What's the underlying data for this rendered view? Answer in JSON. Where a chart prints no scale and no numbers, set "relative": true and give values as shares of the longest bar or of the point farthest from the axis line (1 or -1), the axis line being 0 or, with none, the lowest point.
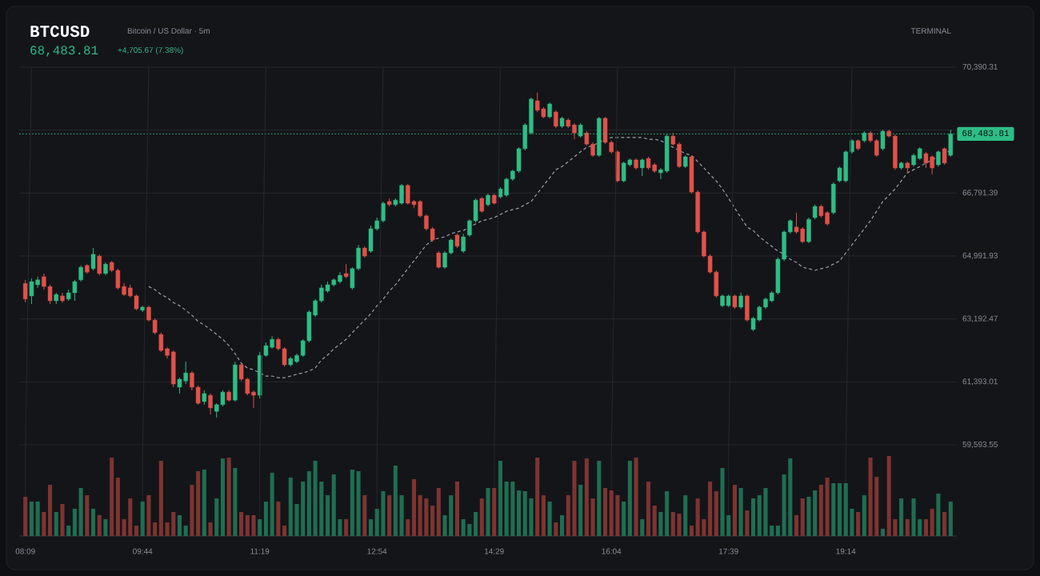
{
  "chart_data": [
    {
      "type": "candlestick",
      "title": "BTCUSD",
      "subtitle": "Bitcoin / US Dollar · 5m",
      "annotations": [
        "68,483.81",
        "+4,705.67 (7.38%)",
        "TERMINAL"
      ],
      "categories": [
        null,
        null,
        null,
        null,
        null,
        null,
        null,
        null,
        null,
        null,
        null,
        null,
        null,
        null,
        null,
        null,
        null,
        null,
        null,
        null,
        null,
        null,
        null,
        null,
        null,
        null,
        null,
        null,
        null,
        null,
        null,
        null,
        null,
        null,
        null,
        null,
        null,
        null,
        null,
        null,
        null,
        null,
        null,
        null,
        null,
        null,
        null,
        null,
        null,
        null,
        null,
        null,
        null,
        null,
        null,
        null,
        null,
        null,
        null,
        null,
        null,
        null,
        null,
        null,
        null,
        null,
        null,
        null,
        null,
        null,
        null,
        null,
        null,
        null,
        null,
        null,
        null,
        null,
        null,
        null,
        null,
        null,
        null,
        null,
        null,
        null,
        null,
        null,
        null,
        null,
        null,
        null,
        null,
        null,
        null,
        null,
        null,
        null,
        null,
        null,
        null,
        null,
        null,
        null,
        null,
        null,
        null,
        null,
        null,
        null,
        null,
        null,
        null,
        null,
        null,
        null,
        null,
        null,
        null,
        null,
        null,
        null,
        null,
        null,
        null,
        null,
        null,
        null,
        null,
        null,
        null,
        null,
        null,
        null,
        null,
        null,
        null,
        null,
        null,
        null,
        null,
        null,
        null,
        null,
        null,
        null,
        null,
        null,
        null,
        null,
        null
      ],
      "ohlc": [
        [
          64210,
          64310,
          63670,
          63760
        ],
        [
          63850,
          64350,
          63620,
          64260
        ],
        [
          64170,
          64400,
          64080,
          64310
        ],
        [
          64400,
          64490,
          64030,
          64120
        ],
        [
          64120,
          64170,
          63620,
          63710
        ],
        [
          63710,
          63940,
          63620,
          63890
        ],
        [
          63850,
          63940,
          63660,
          63710
        ],
        [
          63760,
          64030,
          63710,
          63940
        ],
        [
          63940,
          64310,
          63710,
          64260
        ],
        [
          64310,
          64720,
          64260,
          64670
        ],
        [
          64720,
          64760,
          64490,
          64530
        ],
        [
          64630,
          65220,
          64580,
          65040
        ],
        [
          64990,
          65040,
          64440,
          64490
        ],
        [
          64490,
          64810,
          64440,
          64760
        ],
        [
          64810,
          64850,
          64530,
          64580
        ],
        [
          64580,
          64630,
          64030,
          64080
        ],
        [
          64120,
          64220,
          63850,
          63890
        ],
        [
          64080,
          64170,
          63800,
          63850
        ],
        [
          63850,
          63890,
          63440,
          63480
        ],
        [
          63440,
          63570,
          63390,
          63530
        ],
        [
          63530,
          63570,
          63120,
          63160
        ],
        [
          63160,
          63210,
          62750,
          62800
        ],
        [
          62750,
          62800,
          62250,
          62290
        ],
        [
          62340,
          62380,
          62060,
          62150
        ],
        [
          62250,
          62290,
          61240,
          61330
        ],
        [
          61240,
          61510,
          61060,
          61470
        ],
        [
          61420,
          61970,
          61330,
          61650
        ],
        [
          61650,
          61700,
          61150,
          61240
        ],
        [
          61240,
          61290,
          60740,
          60780
        ],
        [
          60830,
          61150,
          60740,
          61060
        ],
        [
          61010,
          61060,
          60460,
          60650
        ],
        [
          60550,
          60780,
          60370,
          60740
        ],
        [
          60740,
          61150,
          60690,
          61100
        ],
        [
          61100,
          61150,
          60830,
          60870
        ],
        [
          60870,
          61970,
          60830,
          61880
        ],
        [
          61880,
          61930,
          61420,
          61470
        ],
        [
          61470,
          61510,
          61010,
          61060
        ],
        [
          61100,
          61150,
          60650,
          61010
        ],
        [
          61010,
          62250,
          60920,
          62150
        ],
        [
          62150,
          62520,
          62110,
          62430
        ],
        [
          62380,
          62700,
          62340,
          62610
        ],
        [
          62610,
          62660,
          62290,
          62340
        ],
        [
          62340,
          62380,
          61830,
          61880
        ],
        [
          61880,
          62110,
          61830,
          62060
        ],
        [
          61970,
          62200,
          61930,
          62150
        ],
        [
          62150,
          62610,
          62110,
          62570
        ],
        [
          62570,
          63440,
          62520,
          63390
        ],
        [
          63300,
          63760,
          63250,
          63710
        ],
        [
          63710,
          64170,
          63660,
          64080
        ],
        [
          63990,
          64260,
          63940,
          64170
        ],
        [
          64170,
          64350,
          64120,
          64310
        ],
        [
          64260,
          64530,
          64210,
          64440
        ],
        [
          64490,
          64760,
          64350,
          64400
        ],
        [
          64080,
          64670,
          64030,
          64630
        ],
        [
          64630,
          65310,
          64580,
          65220
        ],
        [
          65220,
          65270,
          64950,
          64990
        ],
        [
          65130,
          65860,
          65080,
          65770
        ],
        [
          65770,
          66090,
          65720,
          66000
        ],
        [
          66000,
          66550,
          65950,
          66500
        ],
        [
          66550,
          66640,
          66410,
          66460
        ],
        [
          66460,
          66640,
          66410,
          66590
        ],
        [
          66500,
          67050,
          66460,
          67010
        ],
        [
          67010,
          67050,
          66460,
          66500
        ],
        [
          66550,
          66590,
          66360,
          66460
        ],
        [
          66550,
          66590,
          66090,
          66140
        ],
        [
          66140,
          66180,
          65720,
          65770
        ],
        [
          65770,
          65820,
          65400,
          65450
        ],
        [
          65080,
          65130,
          64630,
          64670
        ],
        [
          64670,
          65130,
          64630,
          65080
        ],
        [
          65080,
          65490,
          65040,
          65450
        ],
        [
          65590,
          65630,
          65220,
          65270
        ],
        [
          65130,
          65630,
          65080,
          65540
        ],
        [
          65590,
          66040,
          65540,
          66000
        ],
        [
          66000,
          66640,
          65950,
          66590
        ],
        [
          66640,
          66680,
          66230,
          66270
        ],
        [
          66460,
          66780,
          66410,
          66730
        ],
        [
          66730,
          66780,
          66460,
          66500
        ],
        [
          66680,
          66960,
          66640,
          66910
        ],
        [
          66730,
          67230,
          66680,
          67190
        ],
        [
          67190,
          67460,
          67140,
          67420
        ],
        [
          67420,
          68100,
          67370,
          68060
        ],
        [
          68060,
          68790,
          68010,
          68740
        ],
        [
          68510,
          69520,
          68470,
          69480
        ],
        [
          69430,
          69660,
          69110,
          69160
        ],
        [
          69200,
          69250,
          68930,
          68970
        ],
        [
          68970,
          69380,
          68930,
          69340
        ],
        [
          69110,
          69160,
          68650,
          68700
        ],
        [
          68700,
          68970,
          68650,
          68930
        ],
        [
          68880,
          68930,
          68650,
          68700
        ],
        [
          68740,
          68790,
          68330,
          68510
        ],
        [
          68420,
          68790,
          68380,
          68740
        ],
        [
          68510,
          68560,
          68150,
          68190
        ],
        [
          68190,
          68240,
          67830,
          67870
        ],
        [
          67870,
          68970,
          67830,
          68930
        ],
        [
          68930,
          68970,
          68200,
          68240
        ],
        [
          68240,
          68290,
          67920,
          67970
        ],
        [
          67970,
          68010,
          67100,
          67140
        ],
        [
          67140,
          67690,
          67100,
          67650
        ],
        [
          67600,
          67780,
          67550,
          67740
        ],
        [
          67740,
          67780,
          67460,
          67510
        ],
        [
          67510,
          67780,
          67280,
          67740
        ],
        [
          67780,
          67830,
          67460,
          67510
        ],
        [
          67600,
          67650,
          67370,
          67420
        ],
        [
          67370,
          67510,
          67190,
          67460
        ],
        [
          67420,
          68470,
          67370,
          68420
        ],
        [
          68420,
          68510,
          68150,
          68190
        ],
        [
          68190,
          68240,
          67510,
          67550
        ],
        [
          67550,
          67870,
          67510,
          67830
        ],
        [
          67830,
          67870,
          66780,
          66820
        ],
        [
          66820,
          66870,
          65630,
          65680
        ],
        [
          65680,
          65720,
          64950,
          64990
        ],
        [
          64990,
          65040,
          64490,
          64530
        ],
        [
          64530,
          64580,
          63800,
          63850
        ],
        [
          63570,
          63890,
          63530,
          63850
        ],
        [
          63570,
          63890,
          63530,
          63850
        ],
        [
          63850,
          63890,
          63480,
          63530
        ],
        [
          63530,
          63940,
          63480,
          63850
        ],
        [
          63850,
          63890,
          63120,
          63160
        ],
        [
          62890,
          63250,
          62840,
          63210
        ],
        [
          63160,
          63570,
          63120,
          63530
        ],
        [
          63530,
          63800,
          63480,
          63760
        ],
        [
          63710,
          63990,
          63670,
          63940
        ],
        [
          63940,
          64950,
          63890,
          64900
        ],
        [
          64900,
          65720,
          64850,
          65680
        ],
        [
          65680,
          66040,
          65630,
          66000
        ],
        [
          65820,
          66230,
          65630,
          65680
        ],
        [
          65770,
          65820,
          65360,
          65400
        ],
        [
          65400,
          66090,
          65360,
          66040
        ],
        [
          66090,
          66460,
          66040,
          66410
        ],
        [
          66410,
          66460,
          66090,
          66140
        ],
        [
          66230,
          66270,
          65860,
          65910
        ],
        [
          66230,
          67100,
          66180,
          67050
        ],
        [
          67140,
          67550,
          67100,
          67510
        ],
        [
          67140,
          68010,
          67100,
          67970
        ],
        [
          67970,
          68330,
          67920,
          68290
        ],
        [
          68290,
          68330,
          68010,
          68060
        ],
        [
          68290,
          68560,
          68240,
          68510
        ],
        [
          68510,
          68560,
          68240,
          68290
        ],
        [
          68290,
          68330,
          67830,
          67870
        ],
        [
          68060,
          68600,
          68010,
          68560
        ],
        [
          68560,
          68600,
          68380,
          68420
        ],
        [
          68420,
          68470,
          67460,
          67510
        ],
        [
          67510,
          67690,
          67460,
          67650
        ],
        [
          67650,
          67690,
          67370,
          67510
        ],
        [
          67600,
          67920,
          67550,
          67870
        ],
        [
          67780,
          68100,
          67740,
          68060
        ],
        [
          67920,
          67970,
          67510,
          67650
        ],
        [
          67830,
          67870,
          67330,
          67510
        ],
        [
          67600,
          68010,
          67550,
          67970
        ],
        [
          68060,
          68100,
          67600,
          67650
        ],
        [
          67870,
          68600,
          67830,
          68483.81
        ]
      ],
      "colors": [
        "#e0524a",
        "#2ebd85",
        "#2ebd85",
        "#e0524a",
        "#e0524a",
        "#2ebd85",
        "#e0524a",
        "#2ebd85",
        "#2ebd85",
        "#2ebd85",
        "#e0524a",
        "#2ebd85",
        "#e0524a",
        "#2ebd85",
        "#e0524a",
        "#e0524a",
        "#e0524a",
        "#e0524a",
        "#e0524a",
        "#2ebd85",
        "#e0524a",
        "#e0524a",
        "#e0524a",
        "#e0524a",
        "#e0524a",
        "#2ebd85",
        "#2ebd85",
        "#e0524a",
        "#e0524a",
        "#2ebd85",
        "#e0524a",
        "#2ebd85",
        "#2ebd85",
        "#e0524a",
        "#2ebd85",
        "#e0524a",
        "#e0524a",
        "#e0524a",
        "#2ebd85",
        "#2ebd85",
        "#2ebd85",
        "#e0524a",
        "#e0524a",
        "#2ebd85",
        "#2ebd85",
        "#2ebd85",
        "#2ebd85",
        "#2ebd85",
        "#2ebd85",
        "#2ebd85",
        "#2ebd85",
        "#2ebd85",
        "#e0524a",
        "#2ebd85",
        "#2ebd85",
        "#e0524a",
        "#2ebd85",
        "#2ebd85",
        "#2ebd85",
        "#e0524a",
        "#2ebd85",
        "#2ebd85",
        "#e0524a",
        "#e0524a",
        "#e0524a",
        "#e0524a",
        "#e0524a",
        "#e0524a",
        "#2ebd85",
        "#2ebd85",
        "#e0524a",
        "#2ebd85",
        "#2ebd85",
        "#2ebd85",
        "#e0524a",
        "#2ebd85",
        "#e0524a",
        "#2ebd85",
        "#2ebd85",
        "#2ebd85",
        "#2ebd85",
        "#2ebd85",
        "#2ebd85",
        "#e0524a",
        "#e0524a",
        "#2ebd85",
        "#e0524a",
        "#2ebd85",
        "#e0524a",
        "#e0524a",
        "#2ebd85",
        "#e0524a",
        "#e0524a",
        "#2ebd85",
        "#e0524a",
        "#e0524a",
        "#e0524a",
        "#2ebd85",
        "#2ebd85",
        "#e0524a",
        "#2ebd85",
        "#e0524a",
        "#e0524a",
        "#2ebd85",
        "#2ebd85",
        "#e0524a",
        "#e0524a",
        "#2ebd85",
        "#e0524a",
        "#e0524a",
        "#e0524a",
        "#e0524a",
        "#e0524a",
        "#2ebd85",
        "#2ebd85",
        "#e0524a",
        "#2ebd85",
        "#e0524a",
        "#2ebd85",
        "#2ebd85",
        "#2ebd85",
        "#2ebd85",
        "#2ebd85",
        "#2ebd85",
        "#2ebd85",
        "#e0524a",
        "#e0524a",
        "#2ebd85",
        "#2ebd85",
        "#e0524a",
        "#e0524a",
        "#2ebd85",
        "#2ebd85",
        "#2ebd85",
        "#2ebd85",
        "#e0524a",
        "#2ebd85",
        "#e0524a",
        "#e0524a",
        "#2ebd85",
        "#e0524a",
        "#e0524a",
        "#2ebd85",
        "#e0524a",
        "#2ebd85",
        "#2ebd85",
        "#e0524a",
        "#e0524a",
        "#2ebd85",
        "#e0524a",
        "#2ebd85"
      ],
      "series": [
        {
          "type": "line",
          "color": "#9a9ea6",
          "line_style": "dashed",
          "values": [
            null,
            null,
            null,
            null,
            null,
            null,
            null,
            null,
            null,
            null,
            null,
            null,
            null,
            null,
            null,
            null,
            null,
            null,
            null,
            null,
            64120,
            64030,
            63890,
            63800,
            63660,
            63570,
            63440,
            63300,
            63120,
            63020,
            62890,
            62750,
            62610,
            62430,
            62200,
            61930,
            61790,
            61740,
            61650,
            61560,
            61560,
            61510,
            61510,
            61560,
            61610,
            61650,
            61700,
            61790,
            62020,
            62160,
            62340,
            62470,
            62610,
            62800,
            62980,
            63160,
            63340,
            63570,
            63760,
            63990,
            64170,
            64400,
            64630,
            64850,
            65080,
            65310,
            65450,
            65500,
            65540,
            65630,
            65680,
            65720,
            65820,
            65910,
            66000,
            66040,
            66090,
            66180,
            66270,
            66320,
            66360,
            66460,
            66550,
            66780,
            67010,
            67230,
            67460,
            67550,
            67690,
            67830,
            67970,
            68100,
            68150,
            68240,
            68330,
            68380,
            68380,
            68380,
            68380,
            68380,
            68380,
            68330,
            68330,
            68290,
            68190,
            68100,
            68010,
            67920,
            67870,
            67690,
            67510,
            67320,
            67140,
            66910,
            66640,
            66360,
            66090,
            65820,
            65720,
            65540,
            65400,
            65270,
            65130,
            65040,
            64900,
            64810,
            64670,
            64630,
            64580,
            64630,
            64670,
            64760,
            64850,
            65080,
            65310,
            65540,
            65770,
            66000,
            66270,
            66550,
            66730,
            66910,
            67140,
            67370,
            67460,
            67550,
            67650,
            67740,
            67830,
            67920,
            68010
          ]
        }
      ],
      "ylim": [
        59593.55,
        70390.31
      ],
      "yticks": [
        {
          "value": 59593.55,
          "label": "59,593.55"
        },
        {
          "value": 61393.01,
          "label": "61,393.01"
        },
        {
          "value": 63192.47,
          "label": "63,192.47"
        },
        {
          "value": 64991.93,
          "label": "64,991.93"
        },
        {
          "value": 66791.39,
          "label": "66,791.39"
        },
        {
          "value": 68590.85,
          "label": null
        },
        {
          "value": 70390.31,
          "label": "70,390.31"
        }
      ],
      "ref_lines": [
        {
          "axis": "y",
          "value": 68483.81,
          "label": "68,483.81",
          "color": "#2ebd85",
          "line_style": "dotted"
        }
      ],
      "grid": "y"
    },
    {
      "type": "bar",
      "relative": true,
      "categories": [
        "08:09",
        null,
        null,
        null,
        null,
        null,
        null,
        null,
        null,
        null,
        null,
        null,
        null,
        null,
        null,
        null,
        null,
        null,
        null,
        "09:44",
        null,
        null,
        null,
        null,
        null,
        null,
        null,
        null,
        null,
        null,
        null,
        null,
        null,
        null,
        null,
        null,
        null,
        null,
        "11:19",
        null,
        null,
        null,
        null,
        null,
        null,
        null,
        null,
        null,
        null,
        null,
        null,
        null,
        null,
        null,
        null,
        null,
        null,
        "12:54",
        null,
        null,
        null,
        null,
        null,
        null,
        null,
        null,
        null,
        null,
        null,
        null,
        null,
        null,
        null,
        null,
        null,
        null,
        "14:29",
        null,
        null,
        null,
        null,
        null,
        null,
        null,
        null,
        null,
        null,
        null,
        null,
        null,
        null,
        null,
        null,
        null,
        null,
        "16:04",
        null,
        null,
        null,
        null,
        null,
        null,
        null,
        null,
        null,
        null,
        null,
        null,
        null,
        null,
        null,
        null,
        null,
        null,
        "17:39",
        null,
        null,
        null,
        null,
        null,
        null,
        null,
        null,
        null,
        null,
        null,
        null,
        null,
        null,
        null,
        null,
        null,
        null,
        "19:14",
        null,
        null,
        null,
        null,
        null,
        null,
        null,
        null,
        null,
        null,
        null,
        null,
        null,
        null,
        null,
        null,
        null
      ],
      "values": [
        0.49,
        0.43,
        0.43,
        0.3,
        0.64,
        0.3,
        0.4,
        0.13,
        0.34,
        0.6,
        0.51,
        0.34,
        0.26,
        0.21,
        0.98,
        0.73,
        0.21,
        0.47,
        0.13,
        0.43,
        0.51,
        0.17,
        0.94,
        0.17,
        0.3,
        0.26,
        0.13,
        0.64,
        0.81,
        0.83,
        0.17,
        0.47,
        0.97,
        0.98,
        0.85,
        0.3,
        0.26,
        0.26,
        0.21,
        0.43,
        0.79,
        0.43,
        0.13,
        0.73,
        0.4,
        0.68,
        0.81,
        0.94,
        0.68,
        0.51,
        0.77,
        0.21,
        0.21,
        0.83,
        0.81,
        0.51,
        0.21,
        0.34,
        0.56,
        0.51,
        0.88,
        0.51,
        0.21,
        0.71,
        0.51,
        0.47,
        0.38,
        0.6,
        0.26,
        0.51,
        0.68,
        0.21,
        0.15,
        0.3,
        0.47,
        0.6,
        0.6,
        0.94,
        0.68,
        0.68,
        0.57,
        0.56,
        0.47,
        0.98,
        0.51,
        0.43,
        0.17,
        0.26,
        0.51,
        0.94,
        0.64,
        0.97,
        0.47,
        0.94,
        0.6,
        0.57,
        0.51,
        0.43,
        0.94,
        0.98,
        0.21,
        0.68,
        0.38,
        0.3,
        0.56,
        0.3,
        0.28,
        0.51,
        0.13,
        0.47,
        0.21,
        0.68,
        0.56,
        0.85,
        0.26,
        0.64,
        0.6,
        0.32,
        0.47,
        0.51,
        0.6,
        0.13,
        0.13,
        0.77,
        0.97,
        0.26,
        0.47,
        0.49,
        0.57,
        0.64,
        0.73,
        0.66,
        0.66,
        0.66,
        0.34,
        0.3,
        0.51,
        0.98,
        0.74,
        0.09,
        1,
        0.21,
        0.47,
        0.21,
        0.47,
        0.21,
        0.21,
        0.34,
        0.53,
        0.3,
        0.43
      ],
      "colors": [
        "#7d3431",
        "#1f6e52",
        "#1f6e52",
        "#7d3431",
        "#7d3431",
        "#1f6e52",
        "#7d3431",
        "#1f6e52",
        "#1f6e52",
        "#1f6e52",
        "#7d3431",
        "#1f6e52",
        "#7d3431",
        "#1f6e52",
        "#7d3431",
        "#7d3431",
        "#7d3431",
        "#7d3431",
        "#7d3431",
        "#1f6e52",
        "#7d3431",
        "#7d3431",
        "#7d3431",
        "#7d3431",
        "#7d3431",
        "#1f6e52",
        "#1f6e52",
        "#7d3431",
        "#7d3431",
        "#1f6e52",
        "#7d3431",
        "#1f6e52",
        "#1f6e52",
        "#7d3431",
        "#1f6e52",
        "#7d3431",
        "#7d3431",
        "#7d3431",
        "#1f6e52",
        "#1f6e52",
        "#1f6e52",
        "#7d3431",
        "#7d3431",
        "#1f6e52",
        "#1f6e52",
        "#1f6e52",
        "#1f6e52",
        "#1f6e52",
        "#1f6e52",
        "#1f6e52",
        "#1f6e52",
        "#1f6e52",
        "#7d3431",
        "#1f6e52",
        "#1f6e52",
        "#7d3431",
        "#1f6e52",
        "#1f6e52",
        "#1f6e52",
        "#7d3431",
        "#1f6e52",
        "#1f6e52",
        "#7d3431",
        "#7d3431",
        "#7d3431",
        "#7d3431",
        "#7d3431",
        "#7d3431",
        "#1f6e52",
        "#1f6e52",
        "#7d3431",
        "#1f6e52",
        "#1f6e52",
        "#1f6e52",
        "#7d3431",
        "#1f6e52",
        "#7d3431",
        "#1f6e52",
        "#1f6e52",
        "#1f6e52",
        "#1f6e52",
        "#1f6e52",
        "#1f6e52",
        "#7d3431",
        "#7d3431",
        "#1f6e52",
        "#7d3431",
        "#1f6e52",
        "#7d3431",
        "#7d3431",
        "#1f6e52",
        "#7d3431",
        "#7d3431",
        "#1f6e52",
        "#7d3431",
        "#7d3431",
        "#7d3431",
        "#1f6e52",
        "#1f6e52",
        "#7d3431",
        "#1f6e52",
        "#7d3431",
        "#7d3431",
        "#1f6e52",
        "#1f6e52",
        "#7d3431",
        "#7d3431",
        "#1f6e52",
        "#7d3431",
        "#7d3431",
        "#7d3431",
        "#7d3431",
        "#7d3431",
        "#1f6e52",
        "#1f6e52",
        "#7d3431",
        "#1f6e52",
        "#7d3431",
        "#1f6e52",
        "#1f6e52",
        "#1f6e52",
        "#1f6e52",
        "#1f6e52",
        "#1f6e52",
        "#1f6e52",
        "#7d3431",
        "#7d3431",
        "#1f6e52",
        "#1f6e52",
        "#7d3431",
        "#7d3431",
        "#1f6e52",
        "#1f6e52",
        "#1f6e52",
        "#1f6e52",
        "#7d3431",
        "#1f6e52",
        "#7d3431",
        "#7d3431",
        "#1f6e52",
        "#7d3431",
        "#7d3431",
        "#1f6e52",
        "#7d3431",
        "#1f6e52",
        "#1f6e52",
        "#7d3431",
        "#7d3431",
        "#1f6e52",
        "#7d3431",
        "#1f6e52"
      ],
      "grid": "x",
      "tick_labels": "x"
    }
  ]
}
